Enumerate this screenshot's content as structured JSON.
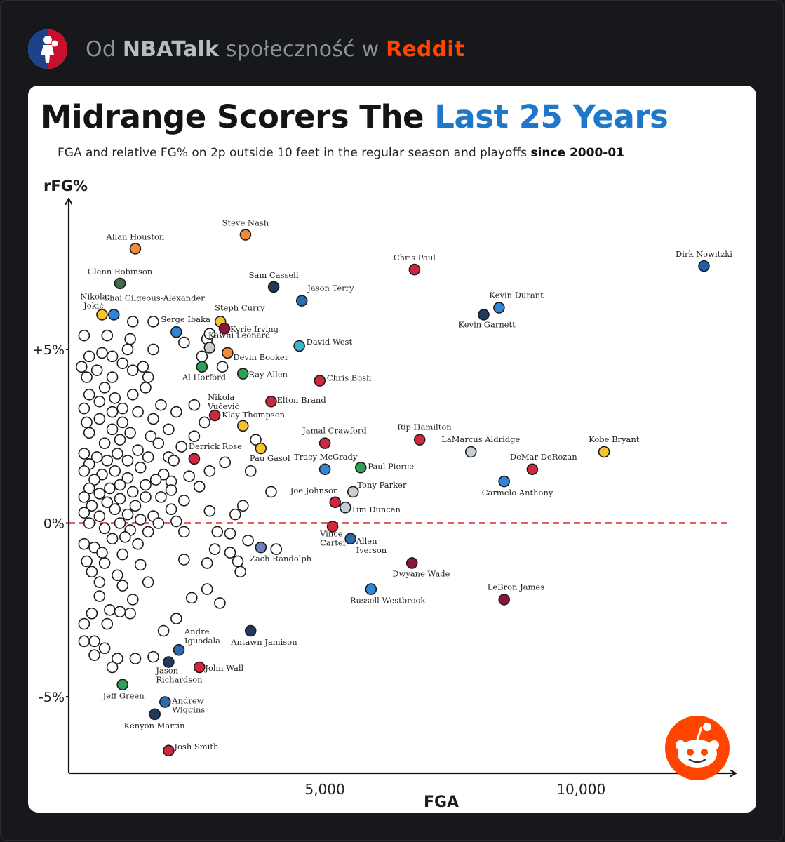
{
  "header": {
    "prefix": "Od",
    "community": "NBATalk",
    "middle": "społeczność w",
    "platform": "Reddit"
  },
  "colors": {
    "accent": "#1f77c7",
    "reddit": "#ff4500",
    "zero_line": "#d62d2d"
  },
  "chart_data": {
    "type": "scatter",
    "title_part1": "Midrange Scorers The ",
    "title_part2": "Last 25 Years",
    "subtitle_main": "FGA and relative FG% on 2p outside 10 feet in the regular season and playoffs ",
    "subtitle_bold": "since 2000-01",
    "xlabel": "FGA",
    "ylabel": "rFG%",
    "xlim": [
      0,
      12900
    ],
    "ylim": [
      -7.2,
      9.2
    ],
    "x_ticks": [
      {
        "v": 5000,
        "label": "5,000"
      },
      {
        "v": 10000,
        "label": "10,000"
      }
    ],
    "y_ticks": [
      {
        "v": 5,
        "label": "+5%"
      },
      {
        "v": 0,
        "label": "0%"
      },
      {
        "v": -5,
        "label": "-5%"
      }
    ],
    "reference_line": 0,
    "named_points": [
      {
        "name": "Allan Houston",
        "x": 1300,
        "y": 7.9,
        "color": "#f08a3c"
      },
      {
        "name": "Steve Nash",
        "x": 3450,
        "y": 8.3,
        "color": "#f08a3c"
      },
      {
        "name": "Glenn Robinson",
        "x": 1000,
        "y": 6.9,
        "color": "#3e6b4c"
      },
      {
        "name": "Chris Paul",
        "x": 6750,
        "y": 7.3,
        "color": "#d1263f"
      },
      {
        "name": "Dirk Nowitzki",
        "x": 12400,
        "y": 7.4,
        "color": "#1f5fa8"
      },
      {
        "name": "Sam Cassell",
        "x": 4000,
        "y": 6.8,
        "color": "#1e3a5f"
      },
      {
        "name": "Jason Terry",
        "x": 4550,
        "y": 6.4,
        "color": "#2b6cb0"
      },
      {
        "name": "Nikola Jokić",
        "x": 650,
        "y": 6.0,
        "color": "#f4c430"
      },
      {
        "name": "Shai Gilgeous-Alexander",
        "x": 880,
        "y": 6.0,
        "color": "#2f86d6"
      },
      {
        "name": "Kevin Durant",
        "x": 8400,
        "y": 6.2,
        "color": "#2f86d6"
      },
      {
        "name": "Kevin Garnett",
        "x": 8100,
        "y": 6.0,
        "color": "#1e3a5f"
      },
      {
        "name": "Steph Curry",
        "x": 2960,
        "y": 5.8,
        "color": "#f4c430"
      },
      {
        "name": "Kyrie Irving",
        "x": 3040,
        "y": 5.6,
        "color": "#8a1538"
      },
      {
        "name": "Serge Ibaka",
        "x": 2100,
        "y": 5.5,
        "color": "#2f86d6"
      },
      {
        "name": "Kawhi Leonard",
        "x": 2750,
        "y": 5.05,
        "color": "#c4ced4"
      },
      {
        "name": "David West",
        "x": 4500,
        "y": 5.1,
        "color": "#3bb5c9"
      },
      {
        "name": "Devin Booker",
        "x": 3100,
        "y": 4.9,
        "color": "#f08a3c"
      },
      {
        "name": "Al Horford",
        "x": 2600,
        "y": 4.5,
        "color": "#2ea05a"
      },
      {
        "name": "Ray Allen",
        "x": 3400,
        "y": 4.3,
        "color": "#2ea05a"
      },
      {
        "name": "Chris Bosh",
        "x": 4900,
        "y": 4.1,
        "color": "#d1263f"
      },
      {
        "name": "Elton Brand",
        "x": 3950,
        "y": 3.5,
        "color": "#d1263f"
      },
      {
        "name": "Nikola Vučević",
        "x": 2850,
        "y": 3.1,
        "color": "#d1263f"
      },
      {
        "name": "Klay Thompson",
        "x": 3400,
        "y": 2.8,
        "color": "#f4c430"
      },
      {
        "name": "Rip Hamilton",
        "x": 6850,
        "y": 2.4,
        "color": "#d1263f"
      },
      {
        "name": "Jamal Crawford",
        "x": 5000,
        "y": 2.3,
        "color": "#d1263f"
      },
      {
        "name": "LaMarcus Aldridge",
        "x": 7850,
        "y": 2.05,
        "color": "#c4ced4"
      },
      {
        "name": "Kobe Bryant",
        "x": 10450,
        "y": 2.05,
        "color": "#f4c430"
      },
      {
        "name": "Pau Gasol",
        "x": 3750,
        "y": 2.15,
        "color": "#f4c430"
      },
      {
        "name": "Derrick Rose",
        "x": 2450,
        "y": 1.85,
        "color": "#d1263f"
      },
      {
        "name": "Tracy McGrady",
        "x": 5000,
        "y": 1.55,
        "color": "#2f86d6"
      },
      {
        "name": "Paul Pierce",
        "x": 5700,
        "y": 1.6,
        "color": "#2ea05a"
      },
      {
        "name": "DeMar DeRozan",
        "x": 9050,
        "y": 1.55,
        "color": "#d1263f"
      },
      {
        "name": "Carmelo Anthony",
        "x": 8500,
        "y": 1.2,
        "color": "#2f86d6"
      },
      {
        "name": "Tony Parker",
        "x": 5550,
        "y": 0.9,
        "color": "#c4ced4"
      },
      {
        "name": "Joe Johnson",
        "x": 5200,
        "y": 0.6,
        "color": "#d1263f"
      },
      {
        "name": "Tim Duncan",
        "x": 5400,
        "y": 0.45,
        "color": "#c4ced4"
      },
      {
        "name": "Vince Carter",
        "x": 5150,
        "y": -0.1,
        "color": "#d1263f"
      },
      {
        "name": "Allen Iverson",
        "x": 5500,
        "y": -0.45,
        "color": "#2b6cb0"
      },
      {
        "name": "Zach Randolph",
        "x": 3750,
        "y": -0.7,
        "color": "#6d7fbd"
      },
      {
        "name": "Dwyane Wade",
        "x": 6700,
        "y": -1.15,
        "color": "#8a1538"
      },
      {
        "name": "Russell Westbrook",
        "x": 5900,
        "y": -1.9,
        "color": "#2f86d6"
      },
      {
        "name": "LeBron James",
        "x": 8500,
        "y": -2.2,
        "color": "#8a1538"
      },
      {
        "name": "Antawn Jamison",
        "x": 3550,
        "y": -3.1,
        "color": "#1e3a5f"
      },
      {
        "name": "Andre Iguodala",
        "x": 2150,
        "y": -3.65,
        "color": "#2b6cb0"
      },
      {
        "name": "Jason Richardson",
        "x": 1950,
        "y": -4.0,
        "color": "#1e3a5f"
      },
      {
        "name": "John Wall",
        "x": 2550,
        "y": -4.15,
        "color": "#d1263f"
      },
      {
        "name": "Jeff Green",
        "x": 1050,
        "y": -4.65,
        "color": "#2ea05a"
      },
      {
        "name": "Andrew Wiggins",
        "x": 1880,
        "y": -5.15,
        "color": "#2b6cb0"
      },
      {
        "name": "Kenyon Martin",
        "x": 1680,
        "y": -5.5,
        "color": "#1e3a5f"
      },
      {
        "name": "Josh Smith",
        "x": 1950,
        "y": -6.55,
        "color": "#d1263f"
      }
    ],
    "unnamed_points": [
      [
        1250,
        5.8
      ],
      [
        1650,
        5.8
      ],
      [
        300,
        5.4
      ],
      [
        750,
        5.4
      ],
      [
        1200,
        5.3
      ],
      [
        2700,
        5.3
      ],
      [
        1150,
        5.0
      ],
      [
        850,
        4.8
      ],
      [
        1650,
        5.0
      ],
      [
        2750,
        5.45
      ],
      [
        2250,
        5.2
      ],
      [
        400,
        4.8
      ],
      [
        650,
        4.9
      ],
      [
        1050,
        4.6
      ],
      [
        1250,
        4.4
      ],
      [
        250,
        4.5
      ],
      [
        1450,
        4.5
      ],
      [
        2600,
        4.8
      ],
      [
        3000,
        4.5
      ],
      [
        550,
        4.4
      ],
      [
        1550,
        4.2
      ],
      [
        850,
        4.2
      ],
      [
        350,
        4.2
      ],
      [
        1500,
        3.9
      ],
      [
        700,
        3.9
      ],
      [
        1250,
        3.7
      ],
      [
        400,
        3.7
      ],
      [
        900,
        3.6
      ],
      [
        600,
        3.5
      ],
      [
        1800,
        3.4
      ],
      [
        2450,
        3.4
      ],
      [
        300,
        3.3
      ],
      [
        850,
        3.2
      ],
      [
        1050,
        3.3
      ],
      [
        2100,
        3.2
      ],
      [
        1350,
        3.2
      ],
      [
        1650,
        3.0
      ],
      [
        600,
        3.0
      ],
      [
        350,
        2.9
      ],
      [
        2650,
        2.9
      ],
      [
        1050,
        2.9
      ],
      [
        1950,
        2.7
      ],
      [
        850,
        2.7
      ],
      [
        400,
        2.6
      ],
      [
        1200,
        2.6
      ],
      [
        2450,
        2.5
      ],
      [
        1600,
        2.5
      ],
      [
        1000,
        2.4
      ],
      [
        3650,
        2.4
      ],
      [
        1750,
        2.3
      ],
      [
        700,
        2.3
      ],
      [
        2200,
        2.2
      ],
      [
        1350,
        2.1
      ],
      [
        300,
        2.0
      ],
      [
        950,
        2.0
      ],
      [
        550,
        1.9
      ],
      [
        1950,
        1.9
      ],
      [
        1550,
        1.9
      ],
      [
        750,
        1.8
      ],
      [
        1150,
        1.8
      ],
      [
        2050,
        1.8
      ],
      [
        400,
        1.7
      ],
      [
        3050,
        1.75
      ],
      [
        1400,
        1.6
      ],
      [
        900,
        1.5
      ],
      [
        300,
        1.5
      ],
      [
        2750,
        1.5
      ],
      [
        650,
        1.4
      ],
      [
        1850,
        1.4
      ],
      [
        3550,
        1.5
      ],
      [
        1150,
        1.3
      ],
      [
        2350,
        1.35
      ],
      [
        500,
        1.25
      ],
      [
        1700,
        1.25
      ],
      [
        1000,
        1.1
      ],
      [
        1500,
        1.1
      ],
      [
        2000,
        1.2
      ],
      [
        400,
        1.0
      ],
      [
        800,
        1.0
      ],
      [
        2550,
        1.05
      ],
      [
        1250,
        0.9
      ],
      [
        2000,
        0.95
      ],
      [
        600,
        0.85
      ],
      [
        3950,
        0.9
      ],
      [
        300,
        0.75
      ],
      [
        1800,
        0.75
      ],
      [
        1000,
        0.7
      ],
      [
        1500,
        0.75
      ],
      [
        2250,
        0.65
      ],
      [
        750,
        0.6
      ],
      [
        3400,
        0.5
      ],
      [
        450,
        0.5
      ],
      [
        1300,
        0.5
      ],
      [
        2750,
        0.35
      ],
      [
        900,
        0.4
      ],
      [
        2000,
        0.4
      ],
      [
        300,
        0.3
      ],
      [
        1150,
        0.25
      ],
      [
        1650,
        0.2
      ],
      [
        600,
        0.2
      ],
      [
        3250,
        0.25
      ],
      [
        1400,
        0.1
      ],
      [
        2100,
        0.05
      ],
      [
        1000,
        0.0
      ],
      [
        400,
        0.0
      ],
      [
        1750,
        0.0
      ],
      [
        2900,
        -0.25
      ],
      [
        3150,
        -0.3
      ],
      [
        700,
        -0.15
      ],
      [
        1200,
        -0.2
      ],
      [
        1550,
        -0.25
      ],
      [
        2250,
        -0.25
      ],
      [
        850,
        -0.45
      ],
      [
        1100,
        -0.4
      ],
      [
        3500,
        -0.5
      ],
      [
        300,
        -0.6
      ],
      [
        500,
        -0.7
      ],
      [
        1350,
        -0.6
      ],
      [
        2850,
        -0.75
      ],
      [
        4050,
        -0.75
      ],
      [
        650,
        -0.85
      ],
      [
        1050,
        -0.9
      ],
      [
        3150,
        -0.85
      ],
      [
        2250,
        -1.05
      ],
      [
        350,
        -1.1
      ],
      [
        3300,
        -1.1
      ],
      [
        700,
        -1.15
      ],
      [
        2700,
        -1.15
      ],
      [
        1400,
        -1.2
      ],
      [
        450,
        -1.4
      ],
      [
        950,
        -1.5
      ],
      [
        3350,
        -1.4
      ],
      [
        600,
        -1.7
      ],
      [
        1550,
        -1.7
      ],
      [
        1050,
        -1.8
      ],
      [
        2700,
        -1.9
      ],
      [
        2400,
        -2.15
      ],
      [
        600,
        -2.1
      ],
      [
        1250,
        -2.2
      ],
      [
        2950,
        -2.3
      ],
      [
        800,
        -2.5
      ],
      [
        1000,
        -2.55
      ],
      [
        450,
        -2.6
      ],
      [
        1200,
        -2.6
      ],
      [
        2100,
        -2.75
      ],
      [
        750,
        -2.9
      ],
      [
        300,
        -2.9
      ],
      [
        1850,
        -3.1
      ],
      [
        300,
        -3.4
      ],
      [
        500,
        -3.4
      ],
      [
        700,
        -3.6
      ],
      [
        500,
        -3.8
      ],
      [
        950,
        -3.9
      ],
      [
        1650,
        -3.85
      ],
      [
        1300,
        -3.9
      ],
      [
        850,
        -4.15
      ]
    ]
  }
}
